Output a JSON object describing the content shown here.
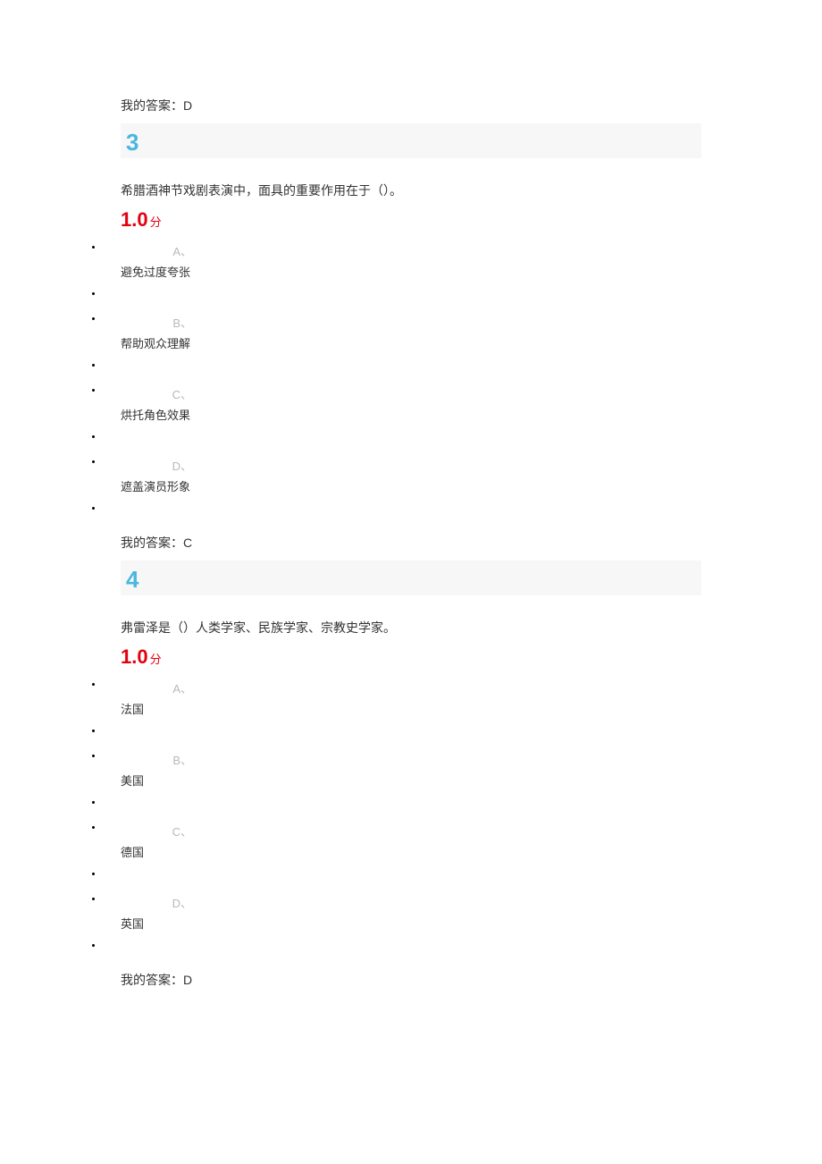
{
  "pre_answer": {
    "prefix": "我的答案：",
    "value": "D"
  },
  "q3": {
    "number": "3",
    "text": "希腊酒神节戏剧表演中，面具的重要作用在于（）。",
    "score_num": "1.0",
    "score_unit": "分",
    "options": {
      "A": {
        "label": "A、",
        "text": "避免过度夸张"
      },
      "B": {
        "label": "B、",
        "text": "帮助观众理解"
      },
      "C": {
        "label": "C、",
        "text": "烘托角色效果"
      },
      "D": {
        "label": "D、",
        "text": "遮盖演员形象"
      }
    },
    "answer_prefix": "我的答案：",
    "answer_value": "C"
  },
  "q4": {
    "number": "4",
    "text": "弗雷泽是（）人类学家、民族学家、宗教史学家。",
    "score_num": "1.0",
    "score_unit": "分",
    "options": {
      "A": {
        "label": "A、",
        "text": "法国"
      },
      "B": {
        "label": "B、",
        "text": "美国"
      },
      "C": {
        "label": "C、",
        "text": "德国"
      },
      "D": {
        "label": "D、",
        "text": "英国"
      }
    },
    "answer_prefix": "我的答案：",
    "answer_value": "D"
  },
  "colors": {
    "number_color": "#4ab7e0",
    "score_color": "#e3000f",
    "label_gray": "#b9b9b9",
    "text_color": "#333333",
    "number_bg": "#f7f7f7"
  }
}
